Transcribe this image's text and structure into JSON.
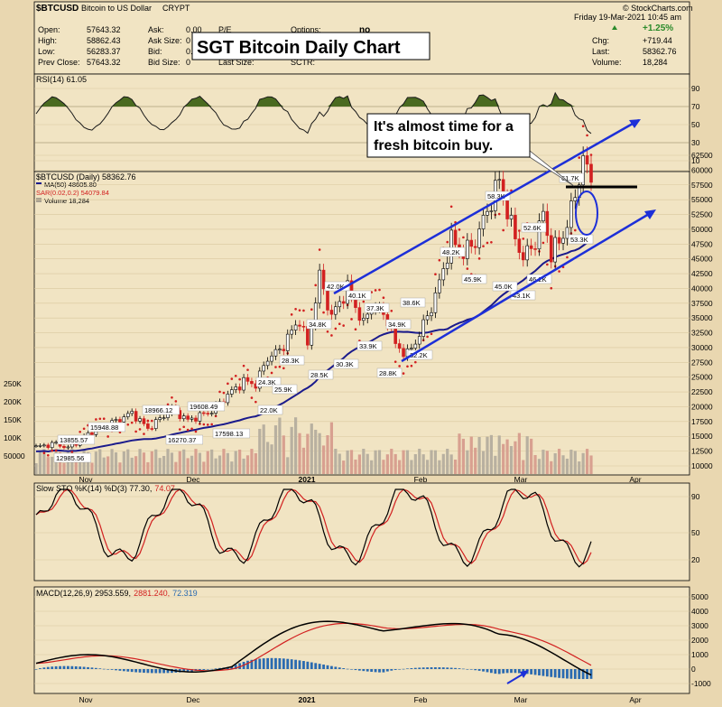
{
  "header": {
    "symbol": "$BTCUSD",
    "name": "Bitcoin to US Dollar",
    "exchange": "CRYPT",
    "brand": "© StockCharts.com",
    "date": "Friday  19-Mar-2021  10:45 am",
    "left_stats": [
      {
        "label": "Open:",
        "value": "57643.32"
      },
      {
        "label": "High:",
        "value": "58862.43"
      },
      {
        "label": "Low:",
        "value": "56283.37"
      },
      {
        "label": "Prev Close:",
        "value": "57643.32"
      }
    ],
    "mid_stats": [
      {
        "label": "Ask:",
        "value": "0.00"
      },
      {
        "label": "Ask Size:",
        "value": "0"
      },
      {
        "label": "Bid:",
        "value": "0.00"
      },
      {
        "label": "Bid Size:",
        "value": "0"
      }
    ],
    "pe_label": "P/E",
    "options_label": "Options:",
    "options_value": "no",
    "last_size_label": "Last Size:",
    "sctr_label": "SCTR:",
    "change_pct": "+1.25%",
    "right_stats": [
      {
        "label": "Chg:",
        "value": "+719.44"
      },
      {
        "label": "Last:",
        "value": "58362.76"
      },
      {
        "label": "Volume:",
        "value": "18,284"
      }
    ]
  },
  "overlay": {
    "title": "SGT Bitcoin Daily Chart",
    "note_line1": "It's almost time for a",
    "note_line2": "fresh bitcoin buy."
  },
  "colors": {
    "background": "#e9d7b0",
    "panel": "#f1e4c3",
    "price_up": "#ffffff",
    "price_down": "#d22020",
    "ma": "#1a1a8c",
    "sar": "#d22020",
    "channel": "#1d2fd8",
    "rsi_fill": "#4a6a20",
    "macd": "#000000",
    "signal": "#d22020",
    "hist": "#2a6ab0"
  },
  "chart_data": [
    {
      "type": "line",
      "title": "RSI(14) 61.05",
      "yticks": [
        10,
        30,
        50,
        70,
        90
      ],
      "ylim": [
        0,
        100
      ],
      "overbought": 70,
      "oversold": 30
    },
    {
      "type": "line",
      "title": "$BTCUSD (Daily) 58362.76",
      "legend": [
        "MA(50) 48605.80",
        "SAR(0.02,0.2) 54079.84",
        "Volume 18,284"
      ],
      "yticks": [
        10000,
        12500,
        15000,
        17500,
        20000,
        22500,
        25000,
        27500,
        30000,
        32500,
        35000,
        37500,
        40000,
        42500,
        45000,
        47500,
        50000,
        52500,
        55000,
        57500,
        60000,
        62500
      ],
      "ytick_labels": [
        "10000",
        "12500",
        "15000",
        "17500",
        "20000",
        "22500",
        "25000",
        "27500",
        "30000",
        "32500",
        "35000",
        "37500",
        "40000",
        "42500",
        "45000",
        "47500",
        "50000",
        "52500",
        "55000",
        "57500",
        "60000",
        "62500"
      ],
      "volume_ticks": [
        "50000",
        "100K",
        "150K",
        "200K",
        "250K"
      ],
      "x_labels": [
        "Nov",
        "Dec",
        "2021",
        "Feb",
        "Mar",
        "Apr"
      ],
      "price_labels": [
        "13855.57",
        "12985.56",
        "15948.88",
        "18966.12",
        "16270.37",
        "19608.49",
        "17598.13",
        "22.0K",
        "24.3K",
        "25.9K",
        "28.3K",
        "28.5K",
        "34.8K",
        "30.3K",
        "42.0K",
        "40.1K",
        "37.3K",
        "33.9K",
        "34.9K",
        "38.6K",
        "28.8K",
        "32.2K",
        "48.2K",
        "45.9K",
        "58.3K",
        "45.0K",
        "52.6K",
        "46.2K",
        "43.1K",
        "61.7K",
        "53.3K"
      ]
    },
    {
      "type": "line",
      "title": "Slow STO %K(14) %D(3) 77.30, 74.07",
      "title_prefix": "Slow STO %K(14) %D(3) 77.30,",
      "title_d": "74.07",
      "yticks": [
        20,
        50,
        90
      ]
    },
    {
      "type": "line",
      "title": "MACD(12,26,9) 2953.559, 2881.240, 72.319",
      "title_prefix": "MACD(12,26,9) 2953.559,",
      "title_signal": "2881.240,",
      "title_hist": "72.319",
      "yticks": [
        -1000,
        0,
        1000,
        2000,
        3000,
        4000,
        5000
      ],
      "ytick_labels": [
        "-1000",
        "0",
        "1000",
        "2000",
        "3000",
        "4000",
        "5000"
      ],
      "x_labels": [
        "Nov",
        "Dec",
        "2021",
        "Feb",
        "Mar",
        "Apr"
      ]
    }
  ]
}
